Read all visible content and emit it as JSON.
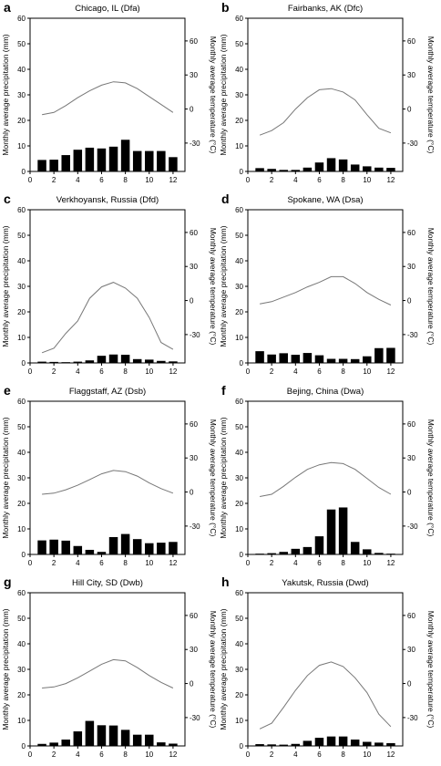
{
  "figure": {
    "y_left_label": "Monthly average precipitation (mm)",
    "y_right_label": "Monthly average temperature (°C)",
    "x_ticks": [
      "0",
      "2",
      "4",
      "6",
      "8",
      "10",
      "12"
    ],
    "y_left_ticks": [
      "0",
      "10",
      "20",
      "30",
      "40",
      "50",
      "60"
    ],
    "y_right_ticks": [
      "-30",
      "0",
      "30",
      "60"
    ]
  },
  "chart_data": [
    {
      "type": "bar",
      "letter": "a",
      "title": "Chicago, IL (Dfa)",
      "x": [
        1,
        2,
        3,
        4,
        5,
        6,
        7,
        8,
        9,
        10,
        11,
        12
      ],
      "series": [
        {
          "values": [
            4.5,
            4.6,
            6.4,
            8.5,
            9.3,
            9.0,
            9.7,
            12.4,
            8.0,
            8.0,
            8.0,
            5.6
          ]
        },
        {
          "values": [
            -5,
            -3,
            3,
            10,
            16,
            21,
            24,
            23,
            18,
            11,
            4,
            -3
          ]
        }
      ],
      "xlim": [
        0,
        13
      ],
      "ylim": [
        0,
        60
      ],
      "y2lim": [
        -55,
        80
      ]
    },
    {
      "type": "bar",
      "letter": "b",
      "title": "Fairbanks, AK (Dfc)",
      "x": [
        1,
        2,
        3,
        4,
        5,
        6,
        7,
        8,
        9,
        10,
        11,
        12
      ],
      "series": [
        {
          "values": [
            1.3,
            1.0,
            0.6,
            0.6,
            1.5,
            3.5,
            5.2,
            4.7,
            2.7,
            2.0,
            1.5,
            1.4
          ]
        },
        {
          "values": [
            -23,
            -19,
            -12,
            0,
            10,
            17,
            18,
            15,
            8,
            -5,
            -17,
            -21
          ]
        }
      ],
      "xlim": [
        0,
        13
      ],
      "ylim": [
        0,
        60
      ],
      "y2lim": [
        -55,
        80
      ]
    },
    {
      "type": "bar",
      "letter": "c",
      "title": "Verkhoyansk, Russia (Dfd)",
      "x": [
        1,
        2,
        3,
        4,
        5,
        6,
        7,
        8,
        9,
        10,
        11,
        12
      ],
      "series": [
        {
          "values": [
            0.5,
            0.4,
            0.3,
            0.5,
            1.0,
            2.8,
            3.3,
            3.2,
            1.5,
            1.3,
            0.8,
            0.6
          ]
        },
        {
          "values": [
            -46,
            -42,
            -29,
            -18,
            2,
            12,
            16,
            11,
            2,
            -15,
            -37,
            -43
          ]
        }
      ],
      "xlim": [
        0,
        13
      ],
      "ylim": [
        0,
        60
      ],
      "y2lim": [
        -55,
        80
      ]
    },
    {
      "type": "bar",
      "letter": "d",
      "title": "Spokane, WA (Dsa)",
      "x": [
        1,
        2,
        3,
        4,
        5,
        6,
        7,
        8,
        9,
        10,
        11,
        12
      ],
      "series": [
        {
          "values": [
            4.6,
            3.3,
            3.8,
            3.2,
            3.9,
            3.0,
            1.6,
            1.6,
            1.5,
            2.6,
            5.8,
            5.9
          ]
        },
        {
          "values": [
            -3,
            -1,
            3,
            7,
            12,
            16,
            21,
            21,
            15,
            7,
            1,
            -4
          ]
        }
      ],
      "xlim": [
        0,
        13
      ],
      "ylim": [
        0,
        60
      ],
      "y2lim": [
        -55,
        80
      ]
    },
    {
      "type": "bar",
      "letter": "e",
      "title": "Flaggstaff, AZ (Dsb)",
      "x": [
        1,
        2,
        3,
        4,
        5,
        6,
        7,
        8,
        9,
        10,
        11,
        12
      ],
      "series": [
        {
          "values": [
            5.5,
            5.8,
            5.4,
            3.3,
            1.8,
            1.0,
            6.8,
            8.0,
            6.0,
            4.4,
            4.6,
            4.9
          ]
        },
        {
          "values": [
            -2,
            -1,
            2,
            6,
            11,
            16,
            19,
            18,
            14,
            8,
            3,
            -1
          ]
        }
      ],
      "xlim": [
        0,
        13
      ],
      "ylim": [
        0,
        60
      ],
      "y2lim": [
        -55,
        80
      ]
    },
    {
      "type": "bar",
      "letter": "f",
      "title": "Bejing, China (Dwa)",
      "x": [
        1,
        2,
        3,
        4,
        5,
        6,
        7,
        8,
        9,
        10,
        11,
        12
      ],
      "series": [
        {
          "values": [
            0.3,
            0.5,
            1.0,
            2.2,
            2.9,
            7.1,
            17.6,
            18.4,
            4.9,
            2.0,
            0.6,
            0.3
          ]
        },
        {
          "values": [
            -4,
            -2,
            5,
            13,
            20,
            24,
            26,
            25,
            20,
            12,
            4,
            -2
          ]
        }
      ],
      "xlim": [
        0,
        13
      ],
      "ylim": [
        0,
        60
      ],
      "y2lim": [
        -55,
        80
      ]
    },
    {
      "type": "bar",
      "letter": "g",
      "title": "Hill City, SD (Dwb)",
      "x": [
        1,
        2,
        3,
        4,
        5,
        6,
        7,
        8,
        9,
        10,
        11,
        12
      ],
      "series": [
        {
          "values": [
            0.8,
            1.3,
            2.5,
            5.7,
            9.8,
            8.1,
            8.0,
            6.3,
            4.4,
            4.4,
            1.4,
            0.9
          ]
        },
        {
          "values": [
            -4,
            -3,
            0,
            5,
            11,
            17,
            21,
            20,
            14,
            7,
            1,
            -4
          ]
        }
      ],
      "xlim": [
        0,
        13
      ],
      "ylim": [
        0,
        60
      ],
      "y2lim": [
        -55,
        80
      ]
    },
    {
      "type": "bar",
      "letter": "h",
      "title": "Yakutsk, Russia (Dwd)",
      "x": [
        1,
        2,
        3,
        4,
        5,
        6,
        7,
        8,
        9,
        10,
        11,
        12
      ],
      "series": [
        {
          "values": [
            0.7,
            0.6,
            0.5,
            0.8,
            2.0,
            3.2,
            3.7,
            3.7,
            2.5,
            1.6,
            1.3,
            1.1
          ]
        },
        {
          "values": [
            -40,
            -35,
            -21,
            -6,
            7,
            16,
            19,
            15,
            5,
            -8,
            -27,
            -38
          ]
        }
      ],
      "xlim": [
        0,
        13
      ],
      "ylim": [
        0,
        60
      ],
      "y2lim": [
        -55,
        80
      ]
    }
  ]
}
